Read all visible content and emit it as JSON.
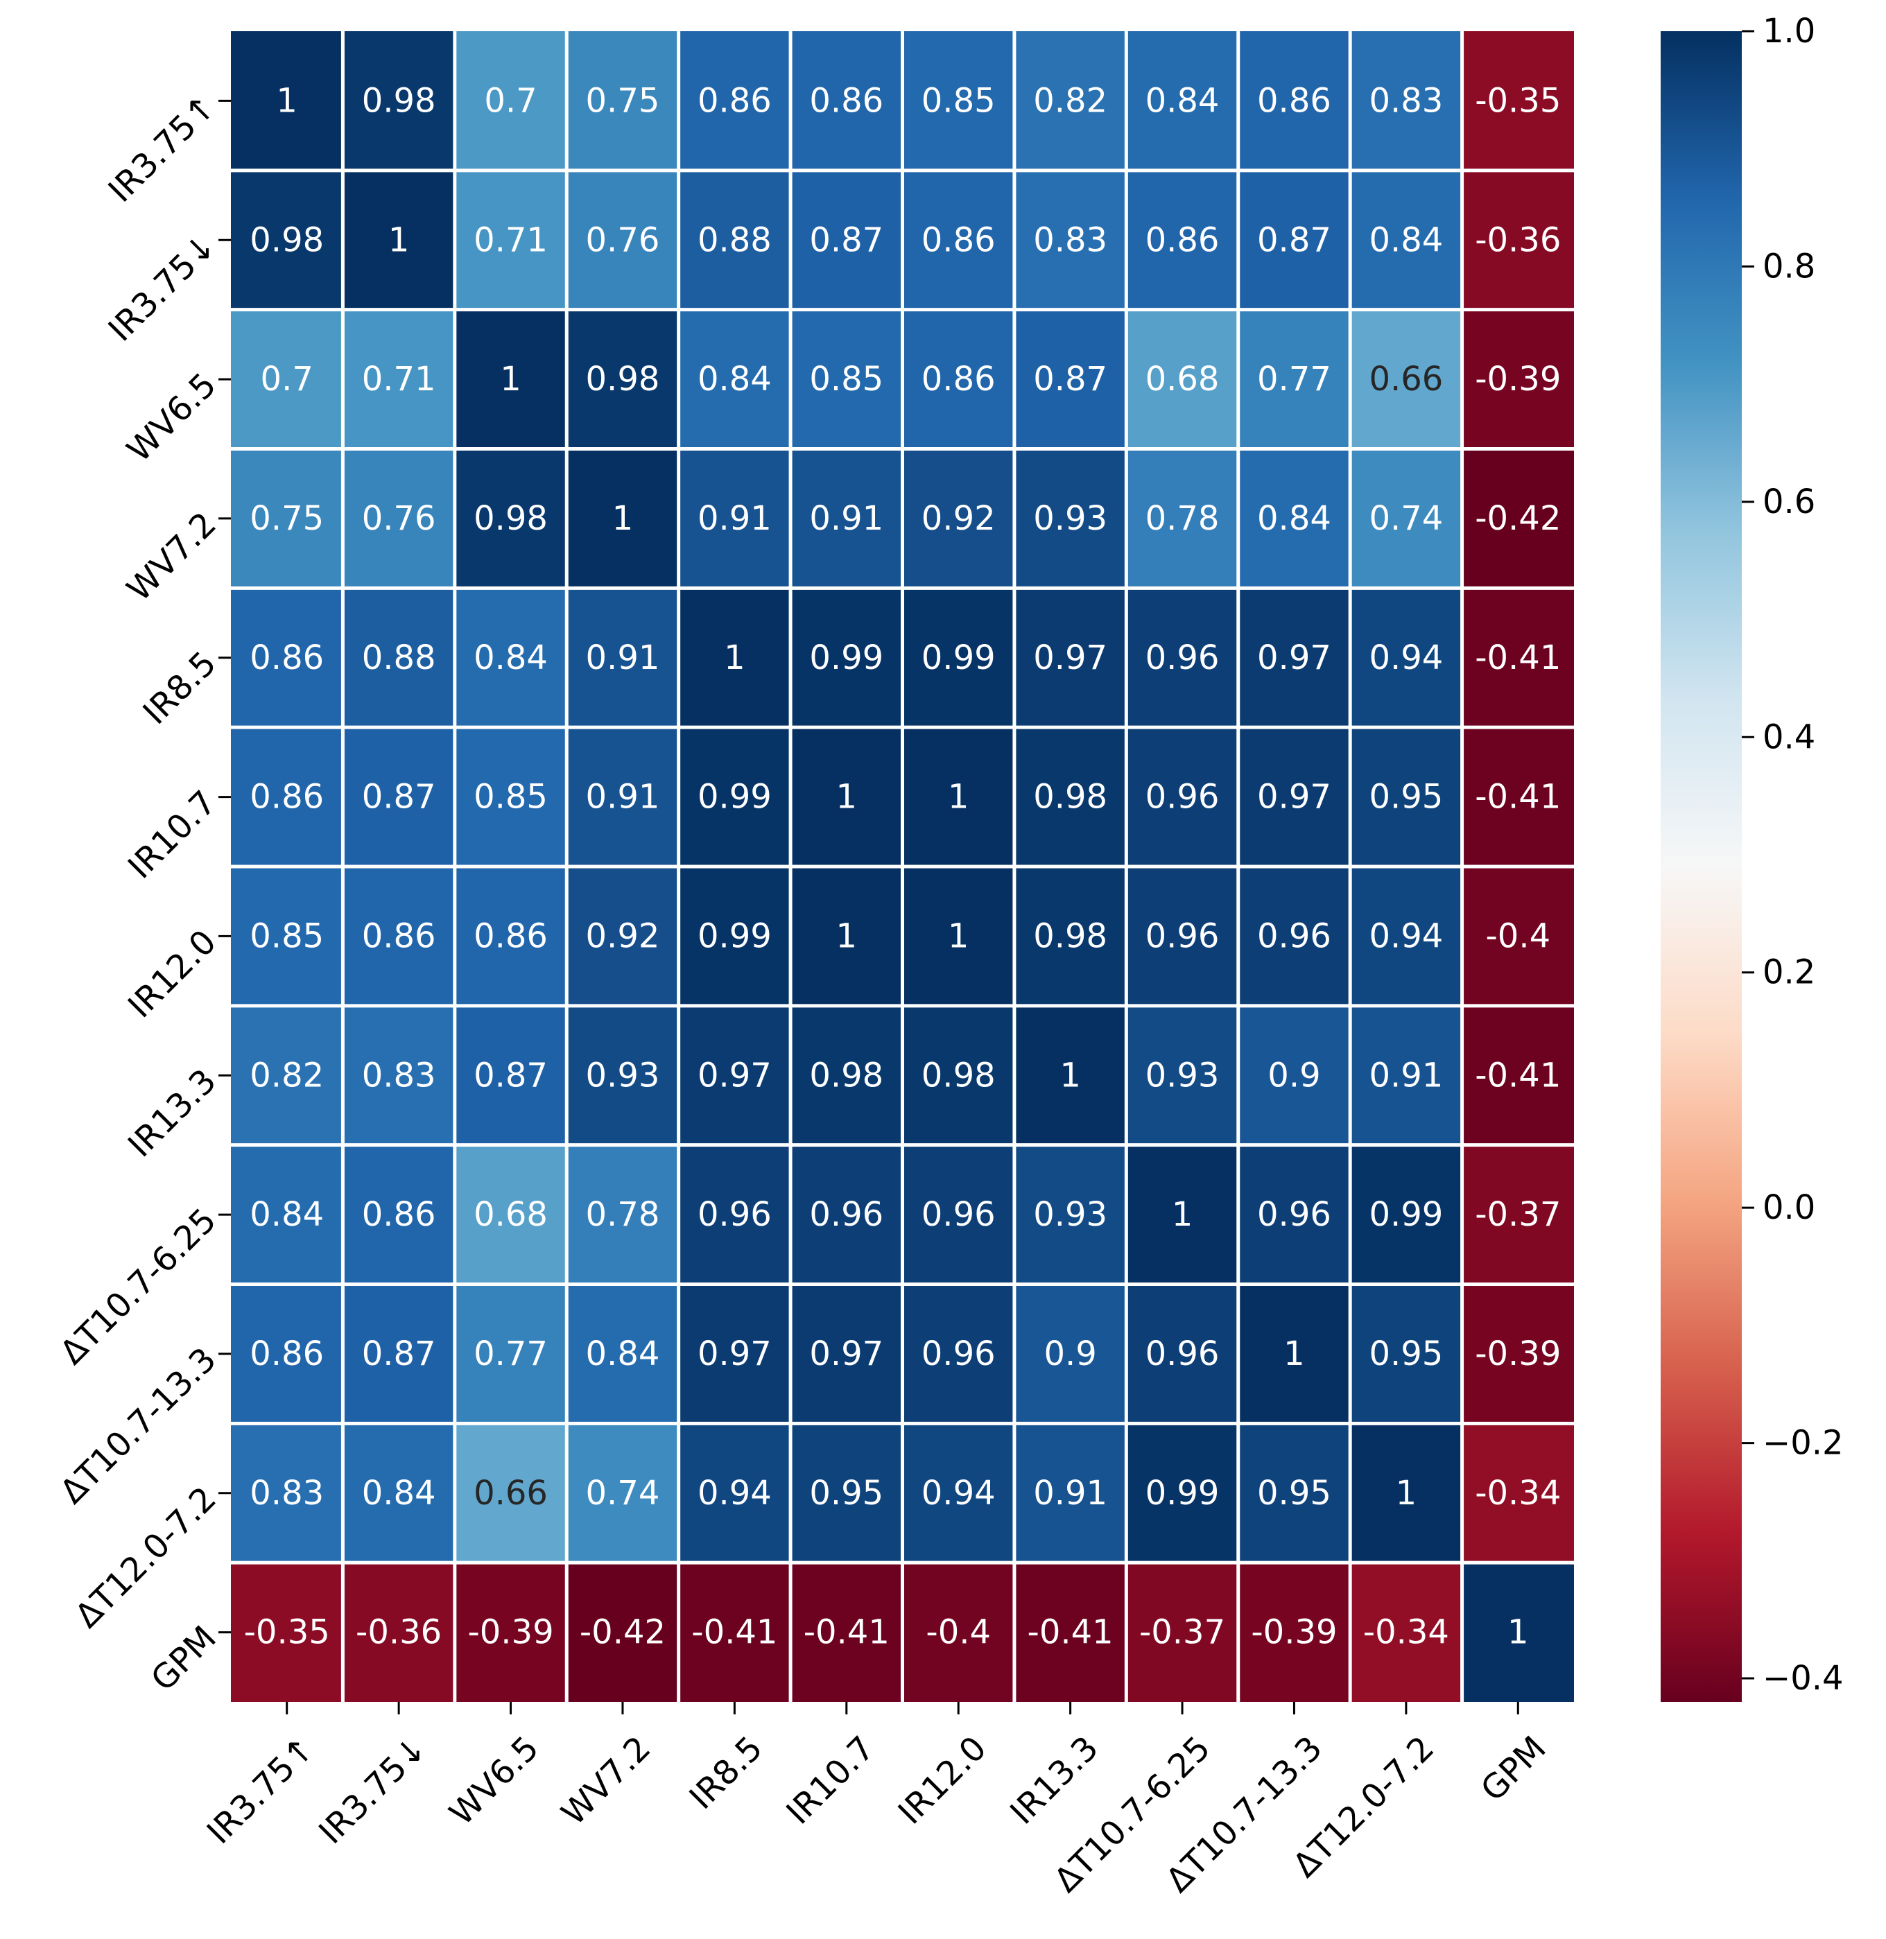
{
  "chart_data": {
    "type": "heatmap",
    "title": "",
    "xlabel": "",
    "ylabel": "",
    "labels": [
      "IR3.75↑",
      "IR3.75↓",
      "WV6.5",
      "WV7.2",
      "IR8.5",
      "IR10.7",
      "IR12.0",
      "IR13.3",
      "ΔT10.7-6.25",
      "ΔT10.7-13.3",
      "ΔT12.0-7.2",
      "GPM"
    ],
    "values": [
      [
        1,
        0.98,
        0.7,
        0.75,
        0.86,
        0.86,
        0.85,
        0.82,
        0.84,
        0.86,
        0.83,
        -0.35
      ],
      [
        0.98,
        1,
        0.71,
        0.76,
        0.88,
        0.87,
        0.86,
        0.83,
        0.86,
        0.87,
        0.84,
        -0.36
      ],
      [
        0.7,
        0.71,
        1,
        0.98,
        0.84,
        0.85,
        0.86,
        0.87,
        0.68,
        0.77,
        0.66,
        -0.39
      ],
      [
        0.75,
        0.76,
        0.98,
        1,
        0.91,
        0.91,
        0.92,
        0.93,
        0.78,
        0.84,
        0.74,
        -0.42
      ],
      [
        0.86,
        0.88,
        0.84,
        0.91,
        1,
        0.99,
        0.99,
        0.97,
        0.96,
        0.97,
        0.94,
        -0.41
      ],
      [
        0.86,
        0.87,
        0.85,
        0.91,
        0.99,
        1,
        1,
        0.98,
        0.96,
        0.97,
        0.95,
        -0.41
      ],
      [
        0.85,
        0.86,
        0.86,
        0.92,
        0.99,
        1,
        1,
        0.98,
        0.96,
        0.96,
        0.94,
        -0.4
      ],
      [
        0.82,
        0.83,
        0.87,
        0.93,
        0.97,
        0.98,
        0.98,
        1,
        0.93,
        0.9,
        0.91,
        -0.41
      ],
      [
        0.84,
        0.86,
        0.68,
        0.78,
        0.96,
        0.96,
        0.96,
        0.93,
        1,
        0.96,
        0.99,
        -0.37
      ],
      [
        0.86,
        0.87,
        0.77,
        0.84,
        0.97,
        0.97,
        0.96,
        0.9,
        0.96,
        1,
        0.95,
        -0.39
      ],
      [
        0.83,
        0.84,
        0.66,
        0.74,
        0.94,
        0.95,
        0.94,
        0.91,
        0.99,
        0.95,
        1,
        -0.34
      ],
      [
        -0.35,
        -0.36,
        -0.39,
        -0.42,
        -0.41,
        -0.41,
        -0.4,
        -0.41,
        -0.37,
        -0.39,
        -0.34,
        1
      ]
    ],
    "colormap": "RdBu",
    "vmin": -0.42,
    "vmax": 1.0,
    "colorbar": {
      "ticks": [
        1.0,
        0.8,
        0.6,
        0.4,
        0.2,
        0.0,
        -0.2,
        -0.4
      ],
      "tick_labels": [
        "1.0",
        "0.8",
        "0.6",
        "0.4",
        "0.2",
        "0.0",
        "−0.2",
        "−0.4"
      ]
    },
    "annotations": true,
    "grid_lines": "white"
  }
}
